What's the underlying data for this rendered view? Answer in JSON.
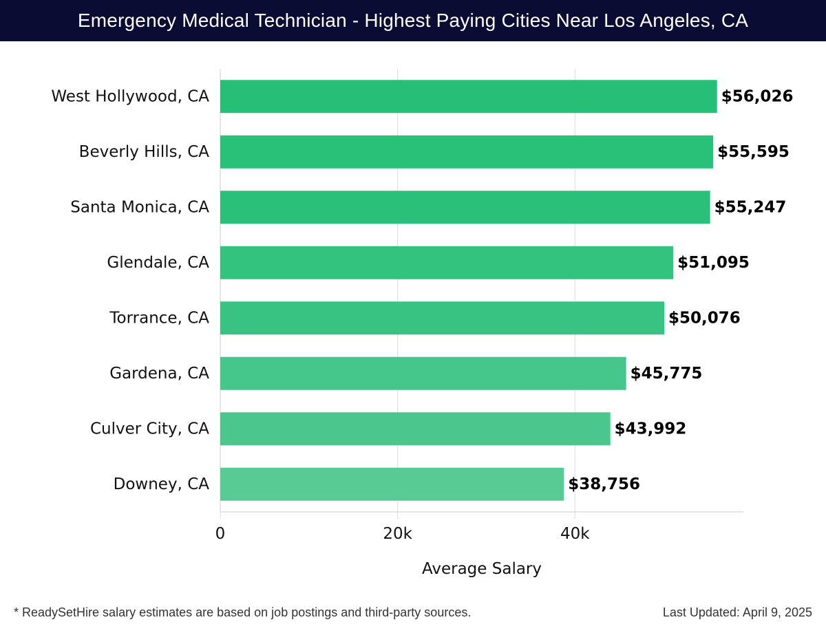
{
  "header": {
    "title": "Emergency Medical Technician - Highest Paying Cities Near Los Angeles, CA"
  },
  "footer": {
    "note": "* ReadySetHire salary estimates are based on job postings and third-party sources.",
    "updated": "Last Updated: April 9, 2025"
  },
  "colors": {
    "title_bg": "#0a0c33",
    "bar_colors": [
      "#27bf76",
      "#29c078",
      "#2bc07a",
      "#34c27f",
      "#38c382",
      "#45c68a",
      "#4bc78d",
      "#58cb95"
    ],
    "grid": "#dddddd"
  },
  "chart_data": {
    "type": "bar",
    "orientation": "horizontal",
    "categories": [
      "West Hollywood, CA",
      "Beverly Hills, CA",
      "Santa Monica, CA",
      "Glendale, CA",
      "Torrance, CA",
      "Gardena, CA",
      "Culver City, CA",
      "Downey, CA"
    ],
    "values": [
      56026,
      55595,
      55247,
      51095,
      50076,
      45775,
      43992,
      38756
    ],
    "value_labels": [
      "$56,026",
      "$55,595",
      "$55,247",
      "$51,095",
      "$50,076",
      "$45,775",
      "$43,992",
      "$38,756"
    ],
    "xlabel": "Average Salary",
    "ylabel": "",
    "xlim": [
      0,
      59000
    ],
    "xticks": [
      0,
      20000,
      40000
    ],
    "xtick_labels": [
      "0",
      "20k",
      "40k"
    ],
    "grid": true
  }
}
